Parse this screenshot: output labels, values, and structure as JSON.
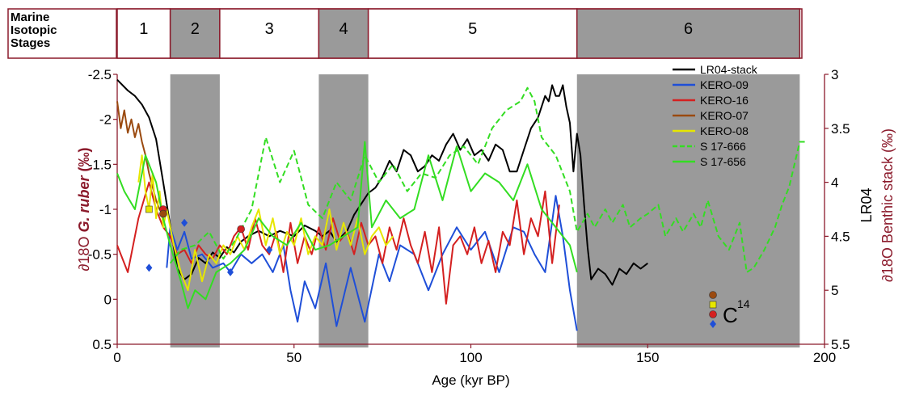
{
  "stages_header": {
    "label_lines": [
      "Marine",
      "Isotopic",
      "Stages"
    ],
    "stages": [
      {
        "label": "1",
        "from": 0,
        "to": 15,
        "shaded": false
      },
      {
        "label": "2",
        "from": 15,
        "to": 29,
        "shaded": true
      },
      {
        "label": "3",
        "from": 29,
        "to": 57,
        "shaded": false
      },
      {
        "label": "4",
        "from": 57,
        "to": 71,
        "shaded": true
      },
      {
        "label": "5",
        "from": 71,
        "to": 130,
        "shaded": false
      },
      {
        "label": "6",
        "from": 130,
        "to": 193,
        "shaded": true
      }
    ]
  },
  "colors": {
    "frame": "#8b1a2b",
    "shade": "#9a9a9a",
    "LR04-stack": "#000000",
    "KERO-09": "#1f4fd8",
    "KERO-16": "#d42020",
    "KERO-07": "#9a4a10",
    "KERO-08": "#e6e600",
    "S 17-666": "#33dd22",
    "S 17-656": "#33dd22"
  },
  "chart_data": {
    "type": "line",
    "xlabel": "Age (kyr BP)",
    "xlim": [
      0,
      200
    ],
    "x_ticks": [
      0,
      50,
      100,
      150,
      200
    ],
    "ylabel_left_prefix": "∂18O ",
    "ylabel_left_italic": "G. ruber",
    "ylabel_left_suffix": " (‰)",
    "ylim_left": [
      0.5,
      -2.5
    ],
    "y_ticks_left": [
      -2.5,
      -2,
      -1.5,
      -1,
      -0.5,
      0,
      0.5
    ],
    "y_tick_labels_left": [
      "-2.5",
      "-2",
      "-1.5",
      "-1",
      "-0.5",
      "0",
      "0.5"
    ],
    "ylabel_right_line1": "LR04",
    "ylabel_right_line2": "∂18O Benthic stack (‰)",
    "ylim_right": [
      3,
      5.5
    ],
    "y_ticks_right": [
      3,
      3.5,
      4,
      4.5,
      5,
      5.5
    ],
    "y_tick_labels_right": [
      "3",
      "3.5",
      "4",
      "4.5",
      "5",
      "5.5"
    ],
    "legend_position": "top-right",
    "series": [
      {
        "name": "LR04-stack",
        "axis": "right",
        "dash": false,
        "x": [
          0,
          3,
          5,
          7,
          9,
          11,
          13,
          15,
          17,
          19,
          21,
          23,
          25,
          27,
          29,
          31,
          33,
          35,
          37,
          40,
          43,
          46,
          50,
          53,
          56,
          58,
          60,
          62,
          65,
          67,
          69,
          71,
          73,
          75,
          77,
          79,
          81,
          83,
          85,
          87,
          89,
          91,
          93,
          95,
          97,
          99,
          101,
          103,
          105,
          107,
          109,
          111,
          113,
          115,
          117,
          119,
          121,
          122,
          123,
          124,
          125,
          126,
          127,
          128,
          129,
          130,
          131,
          132,
          133,
          134,
          136,
          138,
          140,
          142,
          144,
          146,
          148,
          150
        ],
        "y": [
          3.05,
          3.15,
          3.2,
          3.28,
          3.4,
          3.6,
          4.0,
          4.4,
          4.8,
          4.9,
          4.85,
          4.7,
          4.75,
          4.65,
          4.7,
          4.6,
          4.65,
          4.55,
          4.5,
          4.45,
          4.5,
          4.45,
          4.5,
          4.4,
          4.45,
          4.5,
          4.45,
          4.55,
          4.45,
          4.3,
          4.2,
          4.1,
          4.05,
          3.95,
          3.8,
          3.9,
          3.7,
          3.75,
          3.9,
          3.85,
          3.75,
          3.8,
          3.65,
          3.55,
          3.7,
          3.6,
          3.75,
          3.7,
          3.8,
          3.65,
          3.7,
          3.9,
          3.9,
          3.7,
          3.5,
          3.4,
          3.2,
          3.25,
          3.1,
          3.2,
          3.2,
          3.1,
          3.3,
          3.45,
          3.9,
          3.55,
          3.75,
          4.2,
          4.6,
          4.9,
          4.8,
          4.85,
          4.95,
          4.8,
          4.85,
          4.75,
          4.8,
          4.75
        ]
      },
      {
        "name": "KERO-09",
        "axis": "left",
        "dash": false,
        "x": [
          14,
          15,
          17,
          19,
          21,
          24,
          27,
          30,
          32,
          35,
          38,
          41,
          44,
          47,
          49,
          51,
          53,
          56,
          59,
          62,
          66,
          70,
          74,
          77,
          80,
          84,
          88,
          92,
          96,
          100,
          104,
          108,
          112,
          115,
          118,
          121,
          124,
          126,
          128,
          130
        ],
        "y": [
          -0.35,
          -0.8,
          -0.55,
          -0.75,
          -0.45,
          -0.5,
          -0.35,
          -0.4,
          -0.3,
          -0.5,
          -0.4,
          -0.5,
          -0.3,
          -0.6,
          -0.1,
          0.25,
          -0.2,
          0.1,
          -0.4,
          0.3,
          -0.35,
          0.25,
          -0.5,
          -0.2,
          -0.6,
          -0.5,
          -0.1,
          -0.5,
          -0.8,
          -0.55,
          -0.75,
          -0.3,
          -0.8,
          -0.75,
          -0.5,
          -0.3,
          -1.15,
          -0.7,
          -0.1,
          0.35
        ]
      },
      {
        "name": "KERO-16",
        "axis": "left",
        "dash": false,
        "x": [
          0,
          3,
          6,
          9,
          11,
          13,
          15,
          17,
          19,
          21,
          23,
          25,
          27,
          29,
          31,
          33,
          35,
          37,
          39,
          41,
          43,
          45,
          47,
          49,
          51,
          53,
          55,
          57,
          59,
          61,
          63,
          65,
          67,
          69,
          71,
          73,
          75,
          77,
          79,
          81,
          83,
          85,
          87,
          89,
          91,
          93,
          95,
          97,
          99,
          101,
          103,
          105,
          107,
          109,
          111,
          113,
          115,
          117,
          119,
          121,
          123,
          125
        ],
        "y": [
          -0.6,
          -0.3,
          -0.9,
          -1.3,
          -1.0,
          -0.8,
          -0.7,
          -0.5,
          -0.55,
          -0.4,
          -0.6,
          -0.5,
          -0.45,
          -0.6,
          -0.5,
          -0.7,
          -0.8,
          -0.55,
          -0.9,
          -0.6,
          -0.5,
          -0.75,
          -0.3,
          -0.85,
          -0.4,
          -0.7,
          -0.5,
          -0.8,
          -0.55,
          -0.9,
          -0.65,
          -0.75,
          -0.5,
          -0.85,
          -0.6,
          -0.7,
          -0.4,
          -0.8,
          -0.55,
          -0.9,
          -0.6,
          -0.4,
          -0.75,
          -0.3,
          -0.8,
          0.05,
          -0.6,
          -0.7,
          -0.5,
          -0.8,
          -0.4,
          -0.65,
          -0.3,
          -0.75,
          -0.6,
          -1.1,
          -0.5,
          -0.9,
          -0.7,
          -1.2,
          -0.4,
          -1.05
        ]
      },
      {
        "name": "KERO-07",
        "axis": "left",
        "dash": false,
        "x": [
          0,
          1,
          2,
          3,
          4,
          5,
          6,
          7,
          8,
          9,
          10,
          11,
          12,
          13
        ],
        "y": [
          -2.2,
          -1.9,
          -2.1,
          -1.85,
          -2.0,
          -1.8,
          -1.95,
          -1.75,
          -1.6,
          -1.4,
          -1.25,
          -1.1,
          -1.0,
          -0.95
        ]
      },
      {
        "name": "KERO-08",
        "axis": "left",
        "dash": false,
        "x": [
          6,
          7,
          8,
          9,
          10,
          11,
          12,
          13,
          14,
          16,
          18,
          20,
          22,
          24,
          26,
          28,
          30,
          32,
          34,
          36,
          38,
          40,
          42,
          44,
          46,
          48,
          50,
          52,
          54,
          56,
          58,
          60,
          62,
          64,
          66,
          68,
          70,
          72,
          74,
          76,
          78
        ],
        "y": [
          -1.3,
          -1.6,
          -1.2,
          -1.0,
          -1.4,
          -0.9,
          -1.2,
          -0.8,
          -1.0,
          -0.6,
          -0.3,
          -0.1,
          -0.55,
          -0.2,
          -0.5,
          -0.4,
          -0.6,
          -0.5,
          -0.7,
          -0.55,
          -0.8,
          -1.0,
          -0.6,
          -0.9,
          -0.5,
          -0.75,
          -0.6,
          -0.9,
          -0.5,
          -0.7,
          -0.6,
          -1.0,
          -0.55,
          -0.85,
          -0.6,
          -0.9,
          -0.5,
          -0.7,
          -0.8,
          -0.6,
          -0.7
        ]
      },
      {
        "name": "S 17-666",
        "axis": "left",
        "dash": true,
        "x": [
          15,
          18,
          22,
          26,
          30,
          34,
          38,
          42,
          46,
          50,
          54,
          58,
          62,
          66,
          70,
          74,
          78,
          82,
          86,
          90,
          94,
          98,
          102,
          106,
          110,
          114,
          116,
          118,
          120,
          124,
          128,
          130,
          133,
          135,
          138,
          140,
          143,
          145,
          148,
          150,
          153,
          155,
          158,
          160,
          163,
          165,
          167,
          170,
          173,
          176,
          178,
          180,
          183,
          186,
          188,
          190,
          193,
          195
        ],
        "y": [
          -0.4,
          -0.55,
          -0.6,
          -0.75,
          -0.45,
          -0.7,
          -1.0,
          -1.8,
          -1.3,
          -1.65,
          -1.05,
          -0.9,
          -1.3,
          -1.1,
          -1.6,
          -1.3,
          -1.5,
          -1.2,
          -1.4,
          -1.35,
          -1.6,
          -1.7,
          -1.5,
          -1.9,
          -2.1,
          -2.2,
          -2.35,
          -2.2,
          -1.8,
          -1.6,
          -1.2,
          -0.75,
          -0.95,
          -0.8,
          -1.0,
          -0.85,
          -1.05,
          -0.8,
          -0.9,
          -0.95,
          -1.05,
          -0.7,
          -0.9,
          -0.75,
          -0.95,
          -0.8,
          -1.1,
          -0.7,
          -0.55,
          -0.85,
          -0.3,
          -0.35,
          -0.55,
          -0.8,
          -1.05,
          -1.25,
          -1.75,
          -1.75
        ]
      },
      {
        "name": "S 17-656",
        "axis": "left",
        "dash": false,
        "x": [
          0,
          2,
          5,
          8,
          11,
          13,
          15,
          18,
          20,
          22,
          25,
          28,
          32,
          36,
          40,
          44,
          48,
          52,
          56,
          60,
          64,
          68,
          70,
          72,
          76,
          80,
          84,
          88,
          92,
          96,
          100,
          104,
          108,
          112,
          116,
          120,
          124,
          128,
          130
        ],
        "y": [
          -1.4,
          -1.2,
          -1.0,
          -1.6,
          -1.3,
          -0.9,
          -0.6,
          -0.2,
          0.1,
          -0.1,
          0.0,
          -0.3,
          -0.4,
          -0.55,
          -0.9,
          -0.7,
          -0.6,
          -0.85,
          -0.55,
          -0.6,
          -0.7,
          -0.8,
          -1.75,
          -0.8,
          -1.1,
          -0.9,
          -1.0,
          -1.6,
          -1.1,
          -1.7,
          -1.2,
          -1.4,
          -1.3,
          -1.1,
          -1.5,
          -1.0,
          -0.8,
          -0.6,
          -0.3
        ]
      }
    ],
    "c14_markers": {
      "label": "C",
      "superscript": "14",
      "points": [
        {
          "series": "KERO-09",
          "x": 9,
          "y": -0.35,
          "shape": "diamond"
        },
        {
          "series": "KERO-09",
          "x": 19,
          "y": -0.85,
          "shape": "diamond"
        },
        {
          "series": "KERO-09",
          "x": 32,
          "y": -0.3,
          "shape": "diamond"
        },
        {
          "series": "KERO-09",
          "x": 43,
          "y": -0.55,
          "shape": "diamond"
        },
        {
          "series": "KERO-08",
          "x": 9,
          "y": -1.0,
          "shape": "square"
        },
        {
          "series": "KERO-16",
          "x": 13,
          "y": -1.0,
          "shape": "circle"
        },
        {
          "series": "KERO-16",
          "x": 35,
          "y": -0.78,
          "shape": "circle"
        },
        {
          "series": "KERO-07",
          "x": 13,
          "y": -0.95,
          "shape": "circle"
        }
      ],
      "legend_symbols": [
        {
          "series": "KERO-07",
          "shape": "circle"
        },
        {
          "series": "KERO-08",
          "shape": "square"
        },
        {
          "series": "KERO-16",
          "shape": "circle"
        },
        {
          "series": "KERO-09",
          "shape": "diamond"
        }
      ]
    }
  }
}
